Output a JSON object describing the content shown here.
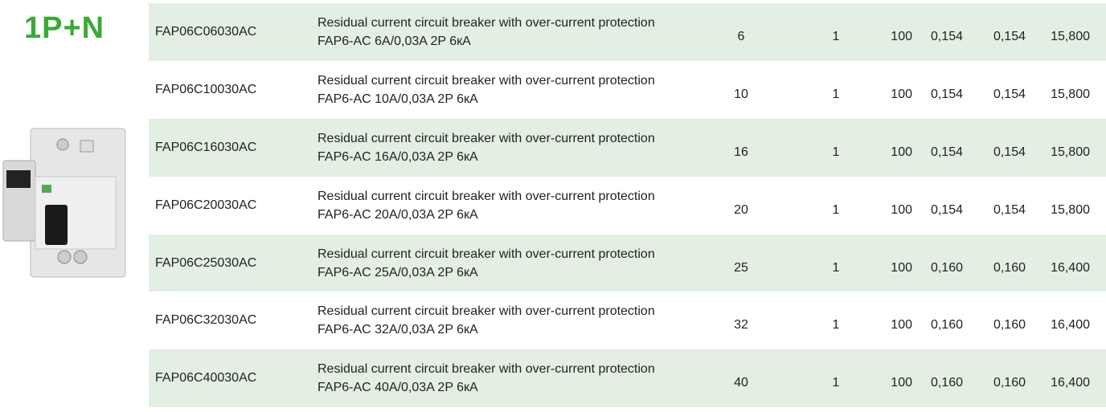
{
  "heading": "1P+N",
  "table": {
    "rows": [
      [
        "FAP06C06030AC",
        "Residual current circuit breaker with over-current protection FAP6-AC 6A/0,03A 2P 6кA",
        "6",
        "1",
        "100",
        "0,154",
        "0,154",
        "15,800"
      ],
      [
        "FAP06C10030AC",
        "Residual current circuit breaker with over-current protection FAP6-AC 10A/0,03A 2P 6кA",
        "10",
        "1",
        "100",
        "0,154",
        "0,154",
        "15,800"
      ],
      [
        "FAP06C16030AC",
        "Residual current circuit breaker with over-current protection FAP6-AC 16A/0,03A 2P 6кA",
        "16",
        "1",
        "100",
        "0,154",
        "0,154",
        "15,800"
      ],
      [
        "FAP06C20030AC",
        "Residual current circuit breaker with over-current protection FAP6-AC 20A/0,03A 2P 6кA",
        "20",
        "1",
        "100",
        "0,154",
        "0,154",
        "15,800"
      ],
      [
        "FAP06C25030AC",
        "Residual current circuit breaker with over-current protection FAP6-AC 25A/0,03A 2P 6кA",
        "25",
        "1",
        "100",
        "0,160",
        "0,160",
        "16,400"
      ],
      [
        "FAP06C32030AC",
        "Residual current circuit breaker with over-current protection FAP6-AC 32A/0,03A 2P 6кA",
        "32",
        "1",
        "100",
        "0,160",
        "0,160",
        "16,400"
      ],
      [
        "FAP06C40030AC",
        "Residual current circuit breaker with over-current protection FAP6-AC 40A/0,03A 2P 6кA",
        "40",
        "1",
        "100",
        "0,160",
        "0,160",
        "16,400"
      ]
    ]
  }
}
